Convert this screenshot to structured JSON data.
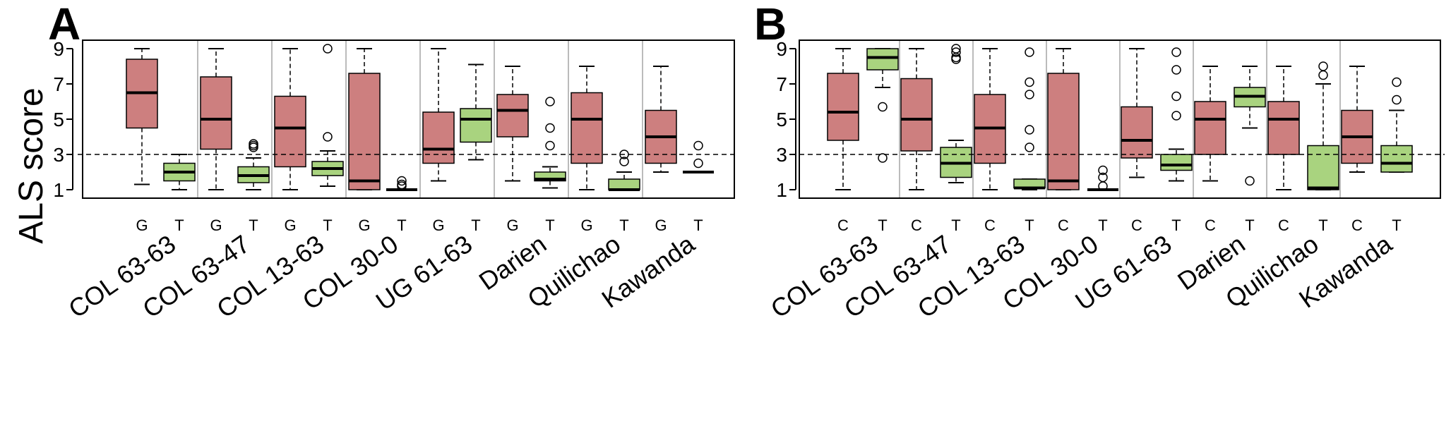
{
  "colors": {
    "susceptible": "#cd7f7f",
    "treated": "#a9d37f",
    "separator": "#bbbbbb"
  },
  "chart_data": [
    {
      "type": "boxplot",
      "panel": "A",
      "ylabel": "ALS score",
      "ylim": [
        1,
        9
      ],
      "yticks": [
        1,
        3,
        5,
        7,
        9
      ],
      "reference_line": 3,
      "categories": [
        "COL 63-63",
        "COL 63-47",
        "COL 13-63",
        "COL 30-0",
        "UG 61-63",
        "Darien",
        "Quilichao",
        "Kawanda"
      ],
      "box_labels": [
        "G",
        "T"
      ],
      "groups": [
        {
          "boxes": [
            {
              "whisker_low": 1.3,
              "q1": 4.5,
              "median": 6.5,
              "q3": 8.4,
              "whisker_high": 9.0,
              "outliers": []
            },
            {
              "whisker_low": 1.0,
              "q1": 1.5,
              "median": 2.0,
              "q3": 2.5,
              "whisker_high": 3.0,
              "outliers": []
            }
          ]
        },
        {
          "boxes": [
            {
              "whisker_low": 1.0,
              "q1": 3.3,
              "median": 5.0,
              "q3": 7.4,
              "whisker_high": 9.0,
              "outliers": []
            },
            {
              "whisker_low": 1.0,
              "q1": 1.4,
              "median": 1.8,
              "q3": 2.3,
              "whisker_high": 2.8,
              "outliers": [
                3.4,
                3.5,
                3.6
              ]
            }
          ]
        },
        {
          "boxes": [
            {
              "whisker_low": 1.0,
              "q1": 2.3,
              "median": 4.5,
              "q3": 6.3,
              "whisker_high": 9.0,
              "outliers": []
            },
            {
              "whisker_low": 1.2,
              "q1": 1.8,
              "median": 2.2,
              "q3": 2.6,
              "whisker_high": 3.2,
              "outliers": [
                4.0,
                9.0
              ]
            }
          ]
        },
        {
          "boxes": [
            {
              "whisker_low": 1.0,
              "q1": 1.0,
              "median": 1.5,
              "q3": 7.6,
              "whisker_high": 9.0,
              "outliers": []
            },
            {
              "whisker_low": 1.0,
              "q1": 1.0,
              "median": 1.0,
              "q3": 1.0,
              "whisker_high": 1.0,
              "outliers": [
                1.2,
                1.3,
                1.5
              ]
            }
          ]
        },
        {
          "boxes": [
            {
              "whisker_low": 1.5,
              "q1": 2.5,
              "median": 3.3,
              "q3": 5.4,
              "whisker_high": 9.0,
              "outliers": []
            },
            {
              "whisker_low": 2.7,
              "q1": 3.7,
              "median": 5.0,
              "q3": 5.6,
              "whisker_high": 8.1,
              "outliers": []
            }
          ]
        },
        {
          "boxes": [
            {
              "whisker_low": 1.5,
              "q1": 4.0,
              "median": 5.5,
              "q3": 6.4,
              "whisker_high": 8.0,
              "outliers": []
            },
            {
              "whisker_low": 1.1,
              "q1": 1.5,
              "median": 1.6,
              "q3": 2.0,
              "whisker_high": 2.3,
              "outliers": [
                3.5,
                4.5,
                6.0
              ]
            }
          ]
        },
        {
          "boxes": [
            {
              "whisker_low": 1.0,
              "q1": 2.5,
              "median": 5.0,
              "q3": 6.5,
              "whisker_high": 8.0,
              "outliers": []
            },
            {
              "whisker_low": 1.0,
              "q1": 1.0,
              "median": 1.0,
              "q3": 1.6,
              "whisker_high": 2.0,
              "outliers": [
                2.6,
                3.0
              ]
            }
          ]
        },
        {
          "boxes": [
            {
              "whisker_low": 2.0,
              "q1": 2.5,
              "median": 4.0,
              "q3": 5.5,
              "whisker_high": 8.0,
              "outliers": []
            },
            {
              "whisker_low": 2.0,
              "q1": 2.0,
              "median": 2.0,
              "q3": 2.0,
              "whisker_high": 2.0,
              "outliers": [
                2.5,
                3.5
              ]
            }
          ]
        }
      ]
    },
    {
      "type": "boxplot",
      "panel": "B",
      "ylim": [
        1,
        9
      ],
      "yticks": [
        1,
        3,
        5,
        7,
        9
      ],
      "reference_line": 3,
      "categories": [
        "COL 63-63",
        "COL 63-47",
        "COL 13-63",
        "COL 30-0",
        "UG 61-63",
        "Darien",
        "Quilichao",
        "Kawanda"
      ],
      "box_labels": [
        "C",
        "T"
      ],
      "groups": [
        {
          "boxes": [
            {
              "whisker_low": 1.0,
              "q1": 3.8,
              "median": 5.4,
              "q3": 7.6,
              "whisker_high": 9.0,
              "outliers": []
            },
            {
              "whisker_low": 6.8,
              "q1": 7.8,
              "median": 8.5,
              "q3": 9.0,
              "whisker_high": 9.0,
              "outliers": [
                5.7,
                2.8
              ]
            }
          ]
        },
        {
          "boxes": [
            {
              "whisker_low": 1.0,
              "q1": 3.2,
              "median": 5.0,
              "q3": 7.3,
              "whisker_high": 9.0,
              "outliers": []
            },
            {
              "whisker_low": 1.4,
              "q1": 1.7,
              "median": 2.5,
              "q3": 3.4,
              "whisker_high": 3.8,
              "outliers": [
                8.4,
                8.5,
                8.8,
                9.0
              ]
            }
          ]
        },
        {
          "boxes": [
            {
              "whisker_low": 1.0,
              "q1": 2.5,
              "median": 4.5,
              "q3": 6.4,
              "whisker_high": 9.0,
              "outliers": []
            },
            {
              "whisker_low": 1.0,
              "q1": 1.1,
              "median": 1.1,
              "q3": 1.6,
              "whisker_high": 1.6,
              "outliers": [
                3.4,
                4.4,
                6.4,
                7.1,
                8.8
              ]
            }
          ]
        },
        {
          "boxes": [
            {
              "whisker_low": 1.0,
              "q1": 1.0,
              "median": 1.5,
              "q3": 7.6,
              "whisker_high": 9.0,
              "outliers": []
            },
            {
              "whisker_low": 1.0,
              "q1": 1.0,
              "median": 1.0,
              "q3": 1.0,
              "whisker_high": 1.0,
              "outliers": [
                1.2,
                1.7,
                2.1
              ]
            }
          ]
        },
        {
          "boxes": [
            {
              "whisker_low": 1.7,
              "q1": 2.8,
              "median": 3.8,
              "q3": 5.7,
              "whisker_high": 9.0,
              "outliers": []
            },
            {
              "whisker_low": 1.5,
              "q1": 2.1,
              "median": 2.4,
              "q3": 3.0,
              "whisker_high": 3.3,
              "outliers": [
                5.2,
                6.3,
                7.8,
                8.8
              ]
            }
          ]
        },
        {
          "boxes": [
            {
              "whisker_low": 1.5,
              "q1": 3.0,
              "median": 5.0,
              "q3": 6.0,
              "whisker_high": 8.0,
              "outliers": []
            },
            {
              "whisker_low": 4.5,
              "q1": 5.7,
              "median": 6.3,
              "q3": 6.8,
              "whisker_high": 8.0,
              "outliers": [
                1.5
              ]
            }
          ]
        },
        {
          "boxes": [
            {
              "whisker_low": 1.0,
              "q1": 3.0,
              "median": 5.0,
              "q3": 6.0,
              "whisker_high": 8.0,
              "outliers": []
            },
            {
              "whisker_low": 1.0,
              "q1": 1.0,
              "median": 1.1,
              "q3": 3.5,
              "whisker_high": 7.0,
              "outliers": [
                7.5,
                8.0
              ]
            }
          ]
        },
        {
          "boxes": [
            {
              "whisker_low": 2.0,
              "q1": 2.5,
              "median": 4.0,
              "q3": 5.5,
              "whisker_high": 8.0,
              "outliers": []
            },
            {
              "whisker_low": 2.0,
              "q1": 2.0,
              "median": 2.5,
              "q3": 3.5,
              "whisker_high": 5.5,
              "outliers": [
                6.1,
                7.1
              ]
            }
          ]
        }
      ]
    }
  ]
}
